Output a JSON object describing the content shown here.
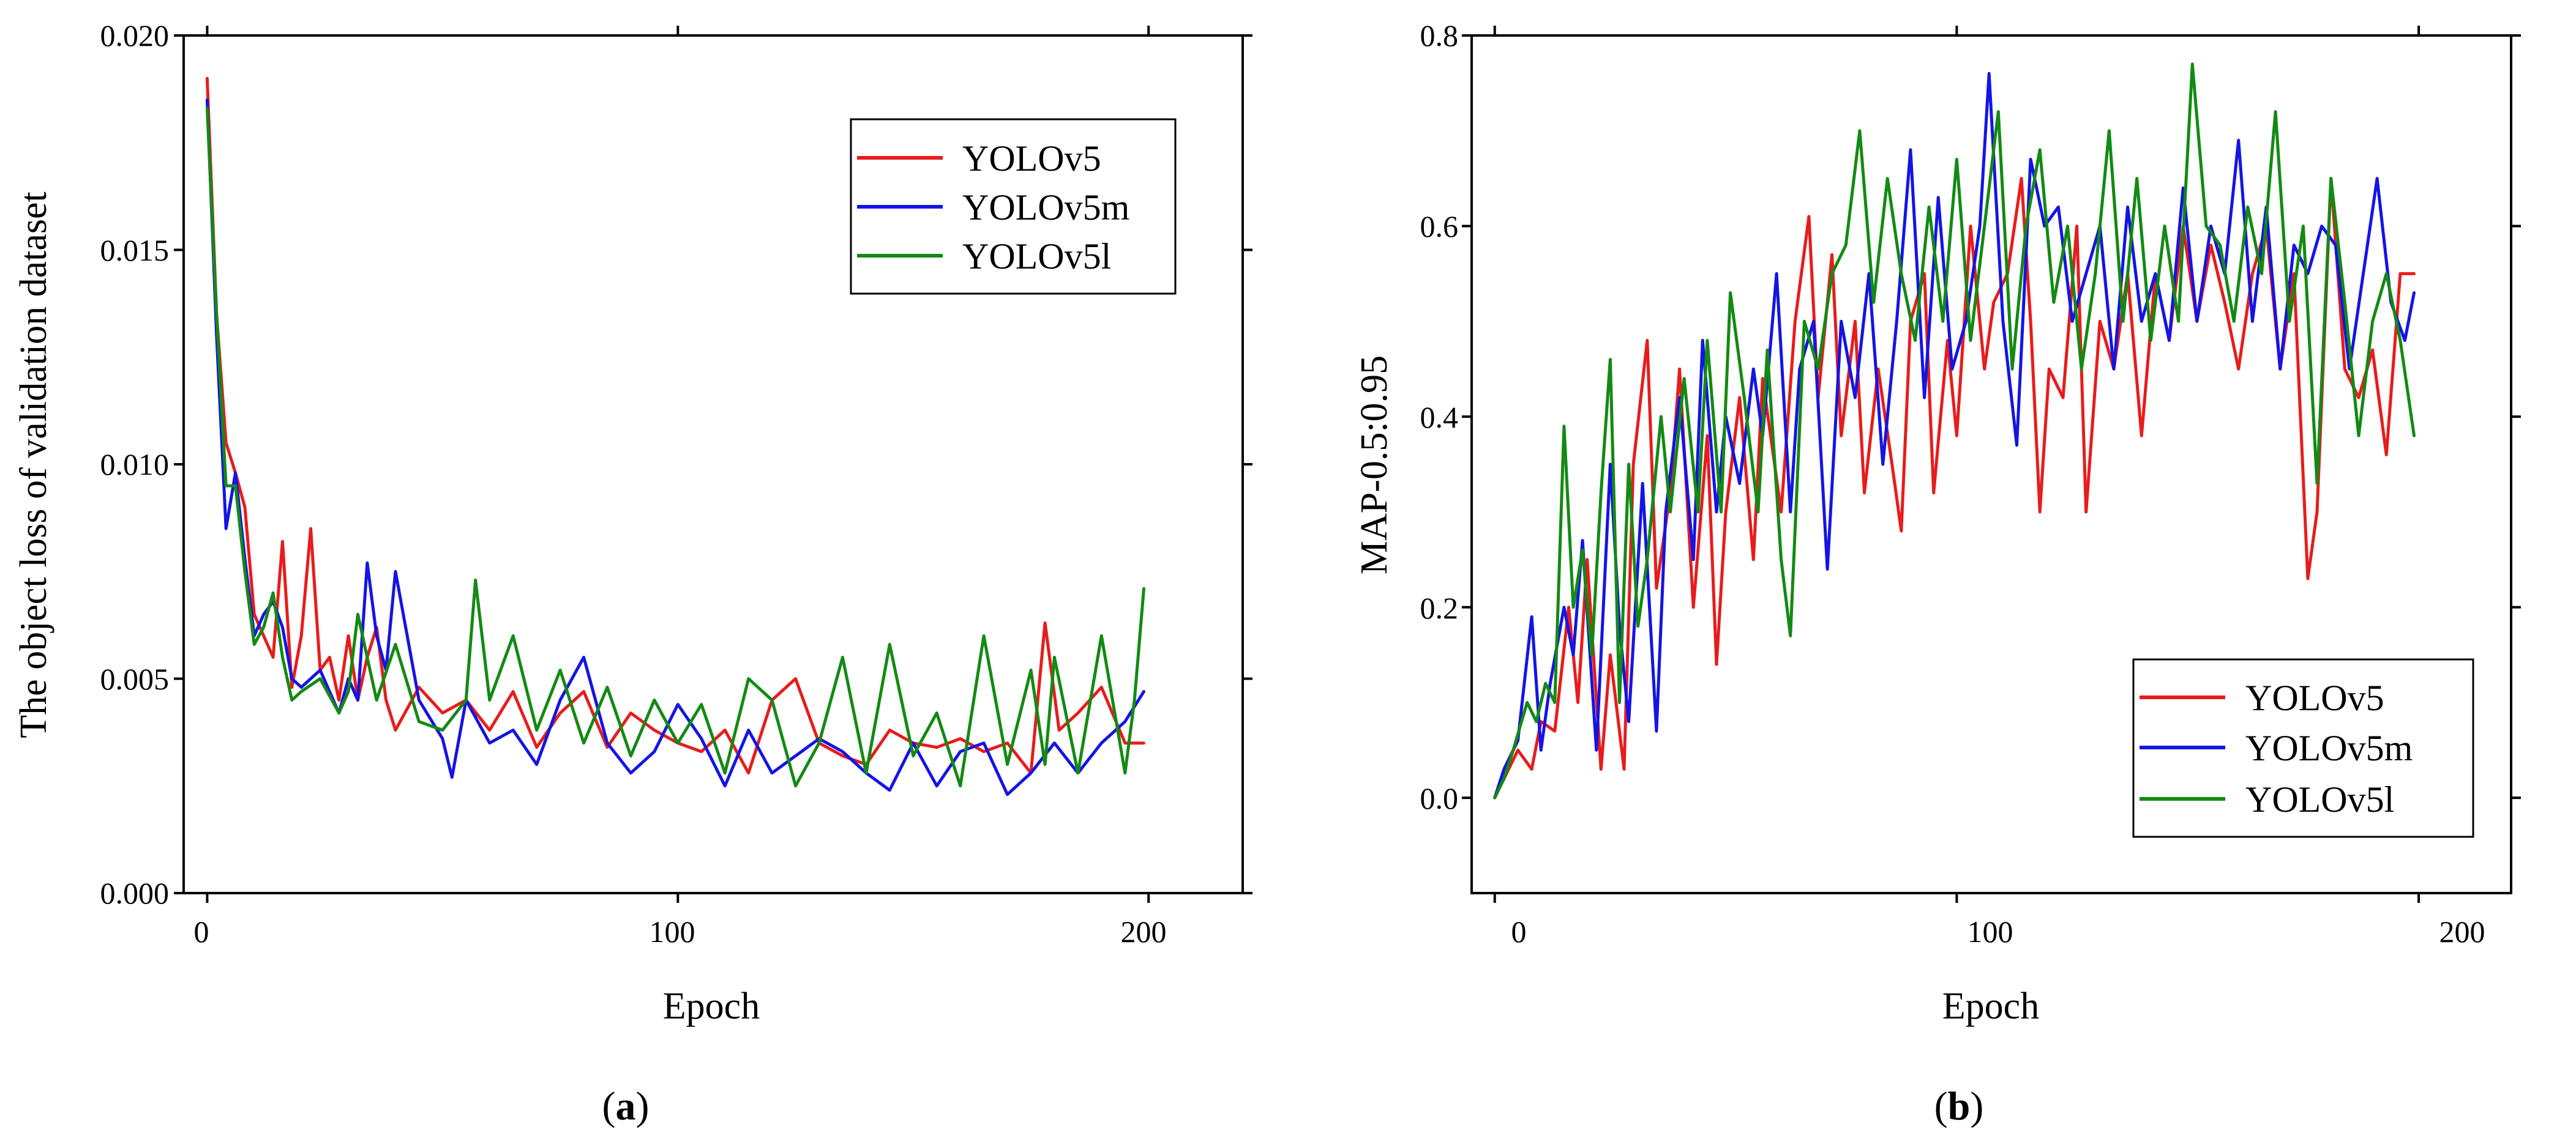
{
  "colors": {
    "YOLOv5": "#e81c1c",
    "YOLOv5m": "#1414e6",
    "YOLOv5l": "#138a13"
  },
  "panels": [
    {
      "label_pre": "(",
      "label_letter": "a",
      "label_post": ")",
      "xlabel": "Epoch",
      "ylabel": "The object loss of validation dataset",
      "xticks": [
        "0",
        "100",
        "200"
      ],
      "yticks": [
        "0.000",
        "0.005",
        "0.010",
        "0.015",
        "0.020"
      ],
      "legend": [
        "YOLOv5",
        "YOLOv5m",
        "YOLOv5l"
      ]
    },
    {
      "label_pre": "(",
      "label_letter": "b",
      "label_post": ")",
      "xlabel": "Epoch",
      "ylabel": "MAP-0.5:0.95",
      "xticks": [
        "0",
        "100",
        "200"
      ],
      "yticks": [
        "0.0",
        "0.2",
        "0.4",
        "0.6",
        "0.8"
      ],
      "legend": [
        "YOLOv5",
        "YOLOv5m",
        "YOLOv5l"
      ]
    }
  ],
  "chart_data": [
    {
      "type": "line",
      "title": "",
      "xlabel": "Epoch",
      "ylabel": "The object loss of validation dataset",
      "xlim": [
        -5,
        220
      ],
      "ylim": [
        0,
        0.02
      ],
      "xticks": [
        0,
        100,
        200
      ],
      "yticks": [
        0,
        0.005,
        0.01,
        0.015,
        0.02
      ],
      "grid": false,
      "legend_position": "top-right",
      "series": [
        {
          "name": "YOLOv5",
          "x": [
            0,
            2,
            4,
            6,
            8,
            10,
            12,
            14,
            16,
            18,
            20,
            22,
            24,
            26,
            28,
            30,
            32,
            34,
            36,
            38,
            40,
            45,
            50,
            55,
            60,
            65,
            70,
            75,
            80,
            85,
            90,
            95,
            100,
            105,
            110,
            115,
            120,
            125,
            130,
            135,
            140,
            145,
            150,
            155,
            160,
            165,
            170,
            175,
            178,
            181,
            185,
            190,
            195,
            199
          ],
          "y": [
            0.019,
            0.0135,
            0.0105,
            0.0098,
            0.009,
            0.0065,
            0.006,
            0.0055,
            0.0082,
            0.0048,
            0.006,
            0.0085,
            0.0052,
            0.0055,
            0.0045,
            0.006,
            0.0045,
            0.0055,
            0.0062,
            0.0045,
            0.0038,
            0.0048,
            0.0042,
            0.0045,
            0.0038,
            0.0047,
            0.0034,
            0.0042,
            0.0047,
            0.0034,
            0.0042,
            0.0038,
            0.0035,
            0.0033,
            0.0038,
            0.0028,
            0.0045,
            0.005,
            0.0035,
            0.0032,
            0.003,
            0.0038,
            0.0035,
            0.0034,
            0.0036,
            0.0033,
            0.0035,
            0.0028,
            0.0063,
            0.0038,
            0.0042,
            0.0048,
            0.0035,
            0.0035
          ]
        },
        {
          "name": "YOLOv5m",
          "x": [
            0,
            2,
            4,
            6,
            8,
            10,
            12,
            14,
            16,
            18,
            20,
            24,
            28,
            30,
            32,
            34,
            36,
            38,
            40,
            45,
            50,
            52,
            55,
            60,
            65,
            70,
            75,
            80,
            85,
            90,
            95,
            100,
            105,
            110,
            115,
            120,
            125,
            130,
            135,
            140,
            145,
            150,
            155,
            160,
            165,
            170,
            175,
            180,
            185,
            190,
            195,
            199
          ],
          "y": [
            0.0185,
            0.013,
            0.0085,
            0.0098,
            0.0078,
            0.006,
            0.0065,
            0.0068,
            0.0062,
            0.005,
            0.0048,
            0.0052,
            0.0042,
            0.005,
            0.0045,
            0.0077,
            0.006,
            0.0052,
            0.0075,
            0.0045,
            0.0036,
            0.0027,
            0.0045,
            0.0035,
            0.0038,
            0.003,
            0.0045,
            0.0055,
            0.0035,
            0.0028,
            0.0033,
            0.0044,
            0.0036,
            0.0025,
            0.0038,
            0.0028,
            0.0032,
            0.0036,
            0.0033,
            0.0028,
            0.0024,
            0.0035,
            0.0025,
            0.0033,
            0.0035,
            0.0023,
            0.0028,
            0.0035,
            0.0028,
            0.0035,
            0.004,
            0.0047
          ]
        },
        {
          "name": "YOLOv5l",
          "x": [
            0,
            2,
            4,
            6,
            8,
            10,
            12,
            14,
            16,
            18,
            20,
            24,
            28,
            30,
            32,
            36,
            40,
            45,
            50,
            55,
            57,
            60,
            65,
            70,
            75,
            80,
            85,
            90,
            95,
            100,
            105,
            110,
            115,
            120,
            125,
            130,
            135,
            140,
            145,
            150,
            155,
            160,
            165,
            170,
            175,
            178,
            180,
            185,
            190,
            195,
            197,
            199
          ],
          "y": [
            0.0183,
            0.0135,
            0.0095,
            0.0095,
            0.0075,
            0.0058,
            0.0062,
            0.007,
            0.0055,
            0.0045,
            0.0047,
            0.005,
            0.0042,
            0.0047,
            0.0065,
            0.0045,
            0.0058,
            0.004,
            0.0038,
            0.0045,
            0.0073,
            0.0045,
            0.006,
            0.0038,
            0.0052,
            0.0035,
            0.0048,
            0.0032,
            0.0045,
            0.0035,
            0.0044,
            0.0028,
            0.005,
            0.0045,
            0.0025,
            0.0035,
            0.0055,
            0.0028,
            0.0058,
            0.0032,
            0.0042,
            0.0025,
            0.006,
            0.003,
            0.0052,
            0.003,
            0.0055,
            0.0028,
            0.006,
            0.0028,
            0.0045,
            0.0071
          ]
        }
      ]
    },
    {
      "type": "line",
      "title": "",
      "xlabel": "Epoch",
      "ylabel": "MAP-0.5:0.95",
      "xlim": [
        -5,
        220
      ],
      "ylim": [
        -0.1,
        0.8
      ],
      "xticks": [
        0,
        100,
        200
      ],
      "yticks": [
        0,
        0.2,
        0.4,
        0.6,
        0.8
      ],
      "grid": false,
      "legend_position": "bottom-right",
      "series": [
        {
          "name": "YOLOv5",
          "x": [
            0,
            2,
            5,
            8,
            10,
            13,
            16,
            18,
            20,
            23,
            25,
            28,
            30,
            33,
            35,
            38,
            40,
            43,
            46,
            48,
            50,
            53,
            56,
            58,
            62,
            65,
            68,
            70,
            73,
            75,
            78,
            80,
            83,
            86,
            88,
            90,
            93,
            95,
            98,
            100,
            103,
            106,
            108,
            111,
            114,
            116,
            118,
            120,
            123,
            126,
            128,
            131,
            134,
            137,
            140,
            143,
            146,
            149,
            152,
            155,
            158,
            161,
            164,
            167,
            170,
            173,
            176,
            178,
            181,
            184,
            187,
            190,
            193,
            196,
            199
          ],
          "y": [
            0.0,
            0.02,
            0.05,
            0.03,
            0.08,
            0.07,
            0.2,
            0.1,
            0.25,
            0.03,
            0.15,
            0.03,
            0.35,
            0.48,
            0.22,
            0.32,
            0.45,
            0.2,
            0.38,
            0.14,
            0.3,
            0.42,
            0.25,
            0.44,
            0.3,
            0.5,
            0.61,
            0.42,
            0.57,
            0.38,
            0.5,
            0.32,
            0.45,
            0.35,
            0.28,
            0.5,
            0.55,
            0.32,
            0.48,
            0.38,
            0.6,
            0.45,
            0.52,
            0.55,
            0.65,
            0.5,
            0.3,
            0.45,
            0.42,
            0.6,
            0.3,
            0.5,
            0.45,
            0.55,
            0.38,
            0.55,
            0.48,
            0.6,
            0.5,
            0.58,
            0.52,
            0.45,
            0.55,
            0.6,
            0.45,
            0.55,
            0.23,
            0.3,
            0.65,
            0.45,
            0.42,
            0.47,
            0.36,
            0.55,
            0.55
          ]
        },
        {
          "name": "YOLOv5m",
          "x": [
            0,
            2,
            5,
            8,
            10,
            12,
            15,
            17,
            19,
            22,
            25,
            27,
            29,
            32,
            35,
            37,
            40,
            43,
            45,
            48,
            50,
            53,
            56,
            58,
            61,
            64,
            66,
            69,
            72,
            75,
            78,
            81,
            84,
            87,
            90,
            93,
            96,
            99,
            102,
            105,
            107,
            110,
            113,
            116,
            119,
            122,
            125,
            128,
            131,
            134,
            137,
            140,
            143,
            146,
            149,
            152,
            155,
            158,
            161,
            164,
            167,
            170,
            173,
            176,
            179,
            182,
            185,
            188,
            191,
            194,
            197,
            199
          ],
          "y": [
            0.0,
            0.03,
            0.06,
            0.19,
            0.05,
            0.12,
            0.2,
            0.15,
            0.27,
            0.05,
            0.35,
            0.18,
            0.08,
            0.33,
            0.07,
            0.3,
            0.42,
            0.25,
            0.48,
            0.3,
            0.4,
            0.33,
            0.45,
            0.38,
            0.55,
            0.3,
            0.45,
            0.5,
            0.24,
            0.5,
            0.42,
            0.55,
            0.35,
            0.5,
            0.68,
            0.42,
            0.63,
            0.45,
            0.5,
            0.6,
            0.76,
            0.5,
            0.37,
            0.67,
            0.6,
            0.62,
            0.5,
            0.55,
            0.6,
            0.45,
            0.62,
            0.5,
            0.55,
            0.48,
            0.64,
            0.5,
            0.6,
            0.55,
            0.69,
            0.5,
            0.62,
            0.45,
            0.58,
            0.55,
            0.6,
            0.58,
            0.45,
            0.55,
            0.65,
            0.52,
            0.48,
            0.53
          ]
        },
        {
          "name": "YOLOv5l",
          "x": [
            0,
            2,
            4,
            7,
            9,
            11,
            13,
            15,
            17,
            19,
            21,
            23,
            25,
            27,
            29,
            31,
            33,
            36,
            38,
            41,
            44,
            46,
            49,
            51,
            54,
            57,
            59,
            62,
            64,
            67,
            70,
            73,
            76,
            79,
            82,
            85,
            88,
            91,
            94,
            97,
            100,
            103,
            106,
            109,
            112,
            115,
            118,
            121,
            124,
            127,
            130,
            133,
            136,
            139,
            142,
            145,
            148,
            151,
            154,
            157,
            160,
            163,
            166,
            169,
            172,
            175,
            178,
            181,
            184,
            187,
            190,
            193,
            196,
            199
          ],
          "y": [
            0.0,
            0.02,
            0.05,
            0.1,
            0.08,
            0.12,
            0.1,
            0.39,
            0.2,
            0.26,
            0.15,
            0.32,
            0.46,
            0.1,
            0.35,
            0.18,
            0.25,
            0.4,
            0.3,
            0.44,
            0.3,
            0.48,
            0.3,
            0.53,
            0.42,
            0.3,
            0.47,
            0.25,
            0.17,
            0.5,
            0.45,
            0.55,
            0.58,
            0.7,
            0.52,
            0.65,
            0.55,
            0.48,
            0.62,
            0.5,
            0.67,
            0.48,
            0.6,
            0.72,
            0.45,
            0.6,
            0.68,
            0.52,
            0.6,
            0.45,
            0.55,
            0.7,
            0.5,
            0.65,
            0.48,
            0.6,
            0.5,
            0.77,
            0.6,
            0.58,
            0.5,
            0.62,
            0.55,
            0.72,
            0.5,
            0.6,
            0.33,
            0.65,
            0.52,
            0.38,
            0.5,
            0.55,
            0.48,
            0.38
          ]
        }
      ]
    }
  ]
}
